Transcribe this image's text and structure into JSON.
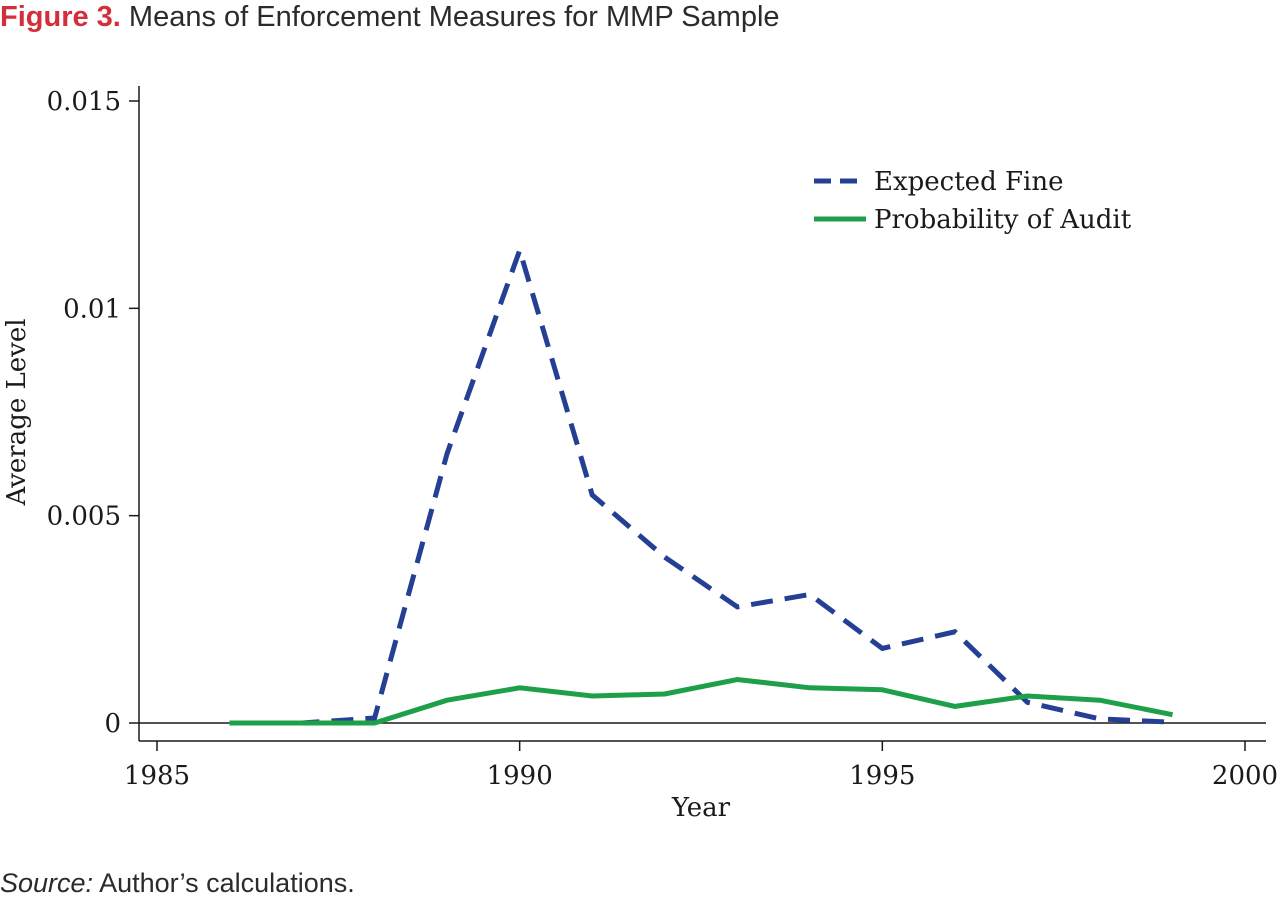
{
  "figure": {
    "label": "Figure 3.",
    "title": "Means of Enforcement Measures for MMP Sample"
  },
  "source": {
    "label": "Source:",
    "text": "Author’s calculations."
  },
  "chart_data": {
    "type": "line",
    "xlabel": "Year",
    "ylabel": "Average Level",
    "xlim": [
      1985,
      2000
    ],
    "ylim": [
      0,
      0.015
    ],
    "xticks": [
      1985,
      1990,
      1995,
      2000
    ],
    "xtick_labels": [
      "1985",
      "1990",
      "1995",
      "2000"
    ],
    "yticks": [
      0,
      0.005,
      0.01,
      0.015
    ],
    "ytick_labels": [
      "0",
      "0.005",
      "0.01",
      "0.015"
    ],
    "grid": false,
    "legend_position": "top-right",
    "x": [
      1986,
      1987,
      1988,
      1989,
      1990,
      1991,
      1992,
      1993,
      1994,
      1995,
      1996,
      1997,
      1998,
      1999
    ],
    "series": [
      {
        "name": "Expected Fine",
        "color": "#243f94",
        "style": "dashed",
        "values": [
          0,
          0,
          0.00012,
          0.0065,
          0.0114,
          0.0055,
          0.004,
          0.0028,
          0.0031,
          0.0018,
          0.0022,
          0.0005,
          0.0001,
          2e-05
        ]
      },
      {
        "name": "Probability of Audit",
        "color": "#1ea04a",
        "style": "solid",
        "values": [
          0,
          0,
          0,
          0.00055,
          0.00085,
          0.00065,
          0.0007,
          0.00105,
          0.00085,
          0.0008,
          0.0004,
          0.00065,
          0.00055,
          0.0002
        ]
      }
    ]
  }
}
